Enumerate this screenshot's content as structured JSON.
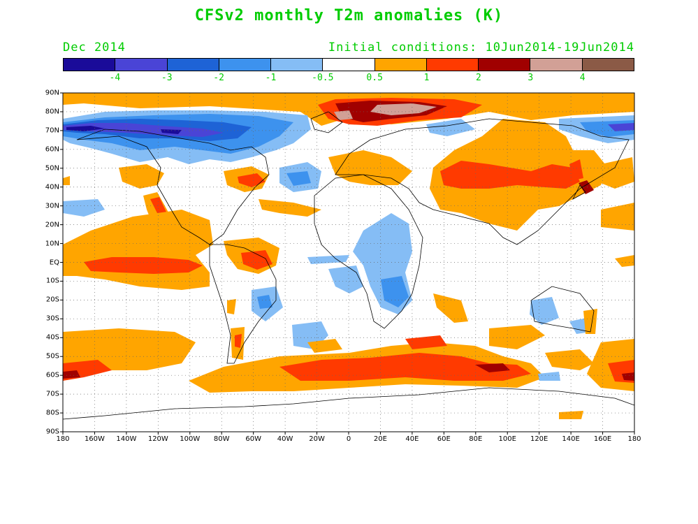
{
  "title": "CFSv2 monthly T2m anomalies (K)",
  "valid_month": "Dec 2014",
  "initial_conditions": "Initial conditions: 10Jun2014-19Jun2014",
  "text_color": "#00cc00",
  "colorbar": {
    "colors": [
      "#1a0b99",
      "#4a44d6",
      "#1e63d6",
      "#3d92ee",
      "#85bdf5",
      "#ffffff",
      "#ffa500",
      "#ff3a00",
      "#a00000",
      "#d2a096",
      "#8b5a46"
    ],
    "labels": [
      "-4",
      "-3",
      "-2",
      "-1",
      "-0.5",
      "0.5",
      "1",
      "2",
      "3",
      "4"
    ]
  },
  "axes": {
    "y_labels": [
      "90N",
      "80N",
      "70N",
      "60N",
      "50N",
      "40N",
      "30N",
      "20N",
      "10N",
      "EQ",
      "10S",
      "20S",
      "30S",
      "40S",
      "50S",
      "60S",
      "70S",
      "80S",
      "90S"
    ],
    "x_labels": [
      "180",
      "160W",
      "140W",
      "120W",
      "100W",
      "80W",
      "60W",
      "40W",
      "20W",
      "0",
      "20E",
      "40E",
      "60E",
      "80E",
      "100E",
      "120E",
      "140E",
      "160E",
      "180"
    ]
  },
  "map": {
    "projection": "cylindrical equidistant",
    "lon_range": [
      -180,
      180
    ],
    "lat_range": [
      -90,
      90
    ],
    "grid": true,
    "grid_style": "dotted"
  }
}
